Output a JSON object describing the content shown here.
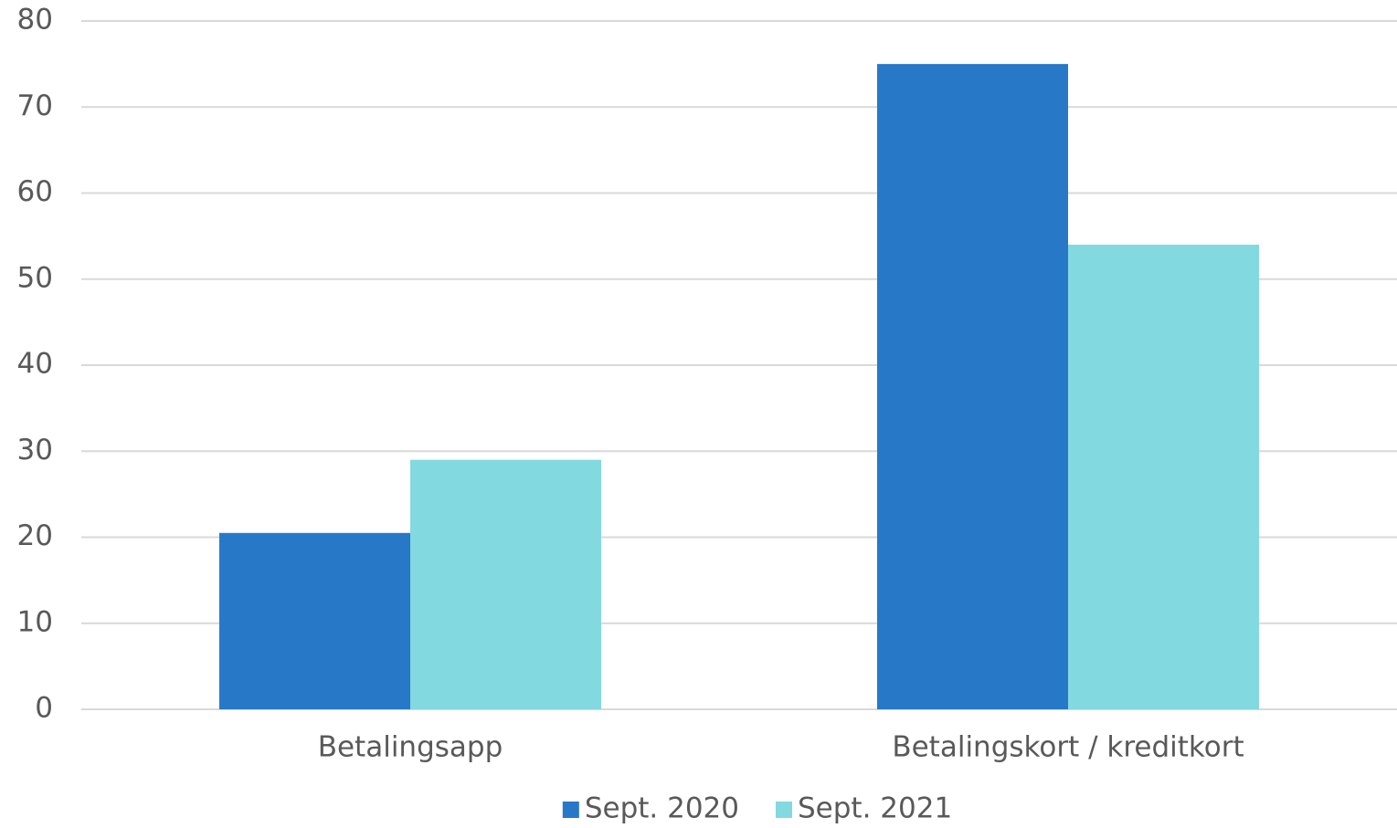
{
  "chart_data": {
    "type": "bar",
    "categories": [
      "Betalingsapp",
      "Betalingskort / kreditkort"
    ],
    "series": [
      {
        "name": "Sept. 2020",
        "color": "#2878c8",
        "values": [
          20.5,
          75
        ]
      },
      {
        "name": "Sept. 2021",
        "color": "#82d9e0",
        "values": [
          29,
          54
        ]
      }
    ],
    "ylim": [
      0,
      80
    ],
    "yticks": [
      0,
      10,
      20,
      30,
      40,
      50,
      60,
      70,
      80
    ],
    "grid": true,
    "legend": "bottom"
  }
}
